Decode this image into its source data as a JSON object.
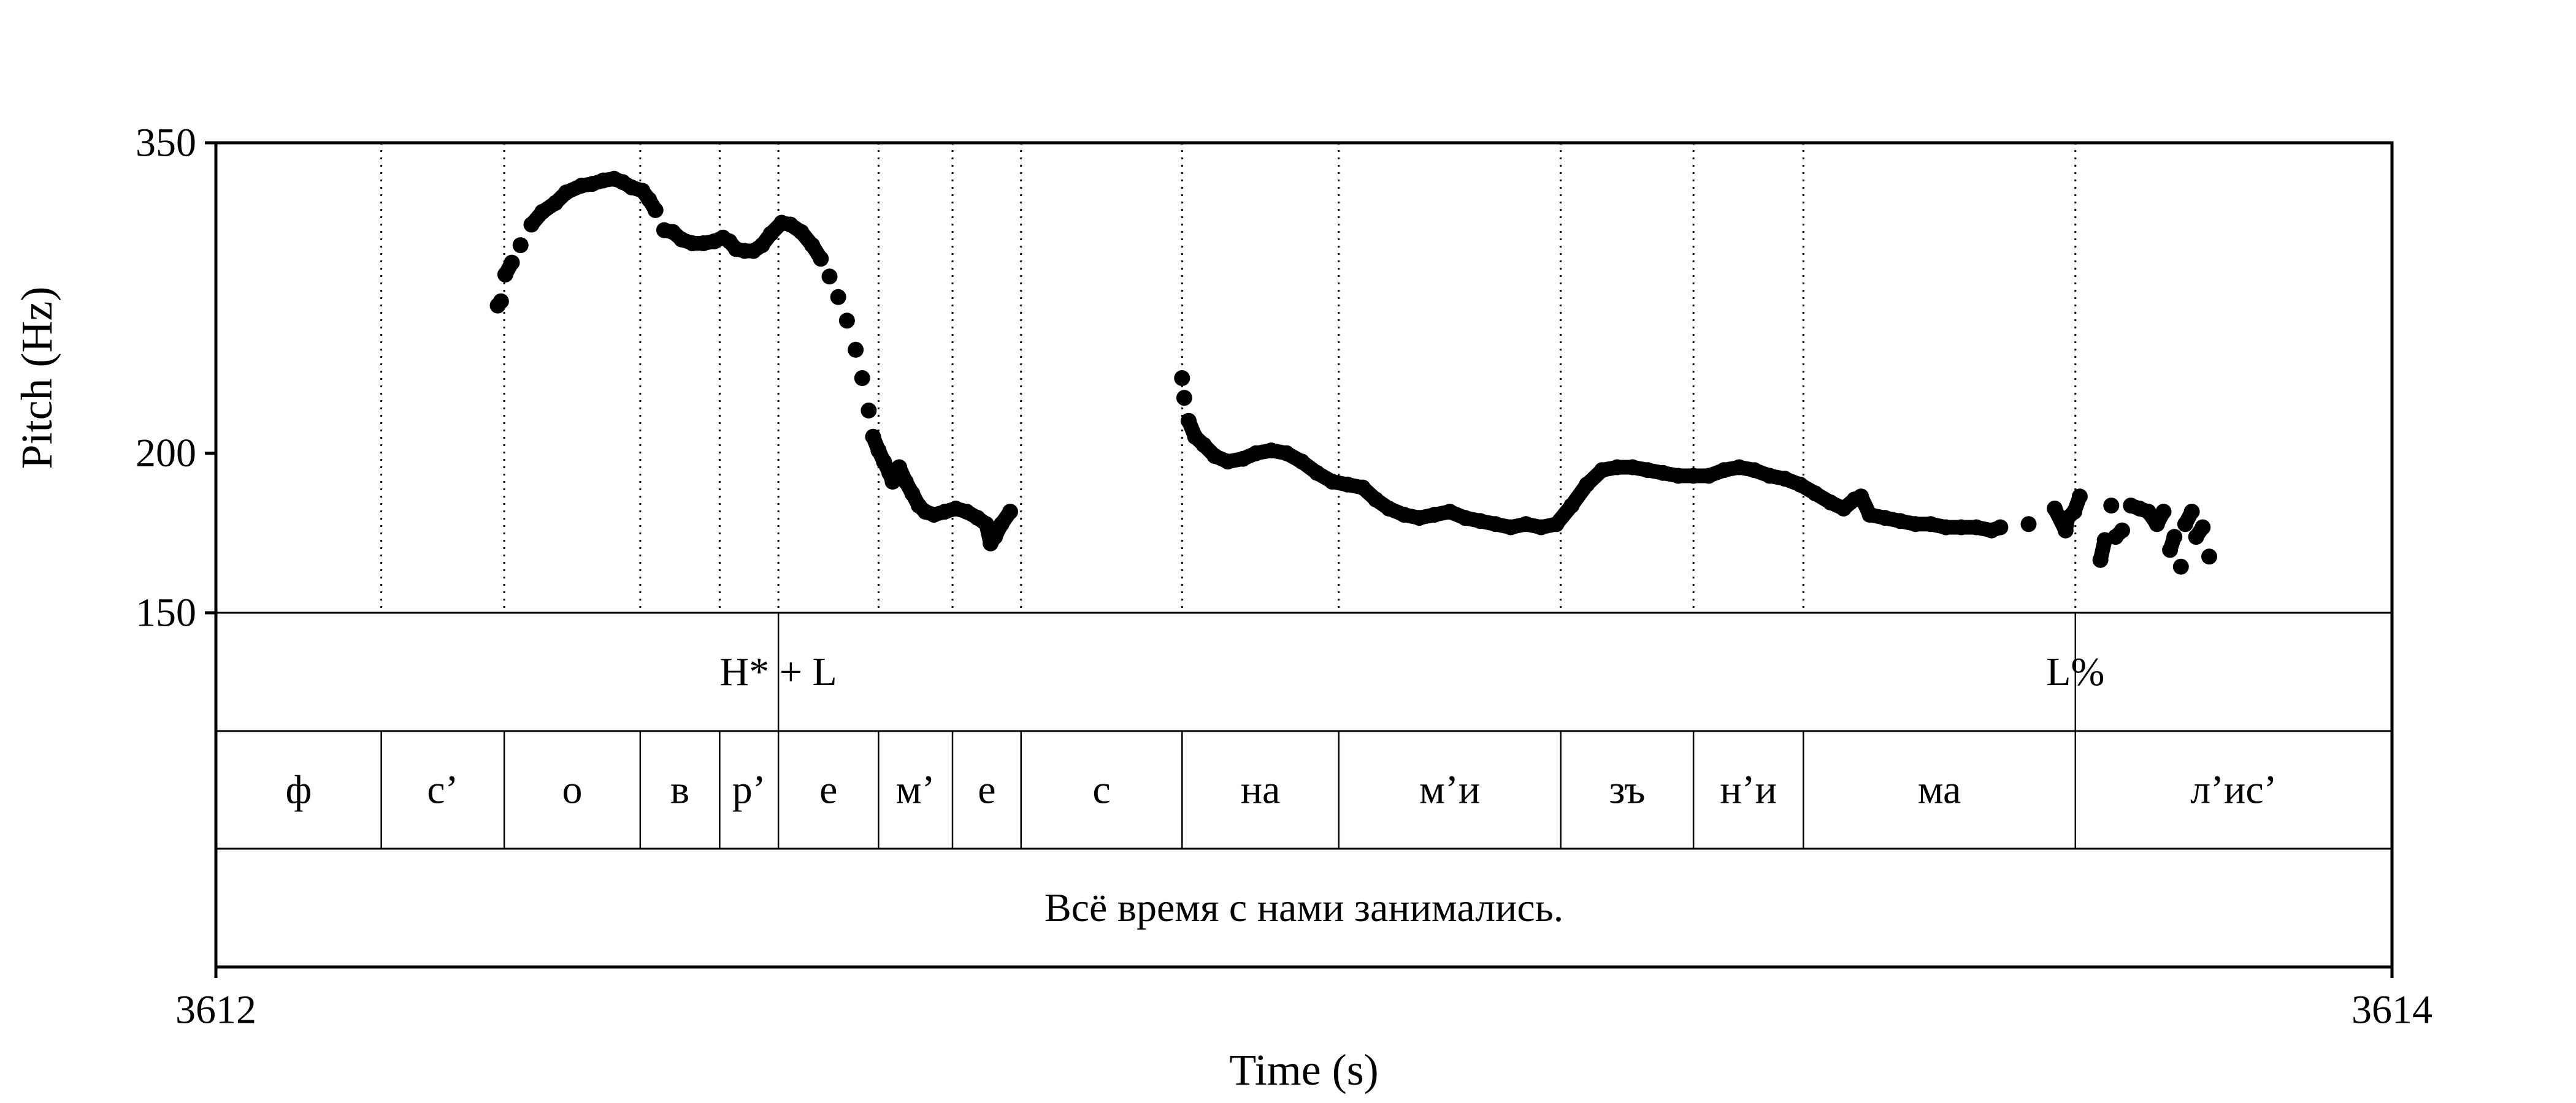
{
  "chart_data": {
    "type": "scatter",
    "title": "",
    "xlabel": "Time (s)",
    "ylabel": "Pitch (Hz)",
    "xlim": [
      3612,
      3614
    ],
    "ylim": [
      150,
      350
    ],
    "y_scale": "log",
    "x_tick_labels": [
      "3612",
      "3614"
    ],
    "y_tick_labels": [
      "150",
      "200",
      "350"
    ],
    "grid": false,
    "pitch_points": [
      [
        3612.259,
        261
      ],
      [
        3612.262,
        263
      ],
      [
        3612.266,
        276
      ],
      [
        3612.272,
        282
      ],
      [
        3612.28,
        291
      ],
      [
        3612.29,
        302
      ],
      [
        3612.3,
        309
      ],
      [
        3612.312,
        314
      ],
      [
        3612.322,
        320
      ],
      [
        3612.336,
        324
      ],
      [
        3612.346,
        325
      ],
      [
        3612.356,
        327
      ],
      [
        3612.366,
        328
      ],
      [
        3612.374,
        326
      ],
      [
        3612.382,
        323
      ],
      [
        3612.392,
        321
      ],
      [
        3612.398,
        316
      ],
      [
        3612.404,
        310
      ],
      [
        3612.412,
        299
      ],
      [
        3612.42,
        298
      ],
      [
        3612.428,
        294
      ],
      [
        3612.438,
        292
      ],
      [
        3612.448,
        292
      ],
      [
        3612.458,
        293
      ],
      [
        3612.466,
        295
      ],
      [
        3612.472,
        293
      ],
      [
        3612.478,
        289
      ],
      [
        3612.486,
        288
      ],
      [
        3612.494,
        288
      ],
      [
        3612.502,
        291
      ],
      [
        3612.51,
        297
      ],
      [
        3612.52,
        303
      ],
      [
        3612.528,
        302
      ],
      [
        3612.538,
        298
      ],
      [
        3612.548,
        291
      ],
      [
        3612.556,
        284
      ],
      [
        3612.564,
        275
      ],
      [
        3612.572,
        265
      ],
      [
        3612.58,
        254
      ],
      [
        3612.588,
        241
      ],
      [
        3612.594,
        229
      ],
      [
        3612.6,
        216
      ],
      [
        3612.604,
        206
      ],
      [
        3612.609,
        201
      ],
      [
        3612.614,
        197
      ],
      [
        3612.619,
        193
      ],
      [
        3612.622,
        190
      ],
      [
        3612.628,
        195
      ],
      [
        3612.634,
        190
      ],
      [
        3612.64,
        186
      ],
      [
        3612.646,
        182
      ],
      [
        3612.652,
        180
      ],
      [
        3612.66,
        179
      ],
      [
        3612.67,
        180
      ],
      [
        3612.68,
        181
      ],
      [
        3612.69,
        180
      ],
      [
        3612.7,
        178
      ],
      [
        3612.708,
        176
      ],
      [
        3612.712,
        170
      ],
      [
        3612.716,
        172
      ],
      [
        3612.722,
        176
      ],
      [
        3612.73,
        180
      ],
      [
        3612.888,
        229
      ],
      [
        3612.89,
        221
      ],
      [
        3612.894,
        212
      ],
      [
        3612.9,
        206
      ],
      [
        3612.908,
        203
      ],
      [
        3612.918,
        199
      ],
      [
        3612.93,
        197
      ],
      [
        3612.944,
        198
      ],
      [
        3612.956,
        200
      ],
      [
        3612.97,
        201
      ],
      [
        3612.984,
        200
      ],
      [
        3612.998,
        197
      ],
      [
        3613.012,
        193
      ],
      [
        3613.026,
        190
      ],
      [
        3613.04,
        189
      ],
      [
        3613.054,
        188
      ],
      [
        3613.066,
        184
      ],
      [
        3613.078,
        181
      ],
      [
        3613.092,
        179
      ],
      [
        3613.106,
        178
      ],
      [
        3613.12,
        179
      ],
      [
        3613.134,
        180
      ],
      [
        3613.148,
        178
      ],
      [
        3613.162,
        177
      ],
      [
        3613.176,
        176
      ],
      [
        3613.19,
        175
      ],
      [
        3613.204,
        176
      ],
      [
        3613.218,
        175
      ],
      [
        3613.232,
        176
      ],
      [
        3613.246,
        182
      ],
      [
        3613.26,
        189
      ],
      [
        3613.274,
        194
      ],
      [
        3613.288,
        195
      ],
      [
        3613.302,
        195
      ],
      [
        3613.316,
        194
      ],
      [
        3613.33,
        193
      ],
      [
        3613.344,
        192
      ],
      [
        3613.358,
        192
      ],
      [
        3613.372,
        192
      ],
      [
        3613.386,
        194
      ],
      [
        3613.4,
        195
      ],
      [
        3613.414,
        194
      ],
      [
        3613.428,
        192
      ],
      [
        3613.442,
        191
      ],
      [
        3613.456,
        189
      ],
      [
        3613.47,
        186
      ],
      [
        3613.484,
        183
      ],
      [
        3613.496,
        181
      ],
      [
        3613.506,
        184
      ],
      [
        3613.512,
        185
      ],
      [
        3613.52,
        179
      ],
      [
        3613.534,
        178
      ],
      [
        3613.548,
        177
      ],
      [
        3613.562,
        176
      ],
      [
        3613.576,
        176
      ],
      [
        3613.59,
        175
      ],
      [
        3613.604,
        175
      ],
      [
        3613.618,
        175
      ],
      [
        3613.632,
        174
      ],
      [
        3613.64,
        175
      ],
      [
        3613.666,
        176
      ],
      [
        3613.69,
        181
      ],
      [
        3613.7,
        174
      ],
      [
        3613.702,
        178
      ],
      [
        3613.708,
        180
      ],
      [
        3613.713,
        185
      ],
      [
        3613.732,
        165
      ],
      [
        3613.736,
        171
      ],
      [
        3613.742,
        182
      ],
      [
        3613.746,
        172
      ],
      [
        3613.752,
        174
      ],
      [
        3613.76,
        182
      ],
      [
        3613.768,
        181
      ],
      [
        3613.776,
        180
      ],
      [
        3613.784,
        176
      ],
      [
        3613.79,
        180
      ],
      [
        3613.796,
        168
      ],
      [
        3613.8,
        172
      ],
      [
        3613.806,
        163
      ],
      [
        3613.81,
        176
      ],
      [
        3613.816,
        180
      ],
      [
        3613.82,
        172
      ],
      [
        3613.826,
        175
      ],
      [
        3613.832,
        166
      ]
    ]
  },
  "tiers": {
    "tones": {
      "labels": [
        {
          "t": 3612.517,
          "text": "H* + L"
        },
        {
          "t": 3613.709,
          "text": "L%"
        }
      ]
    },
    "segments": {
      "boundaries": [
        3612.152,
        3612.265,
        3612.39,
        3612.463,
        3612.517,
        3612.609,
        3612.677,
        3612.74,
        3612.888,
        3613.032,
        3613.236,
        3613.358,
        3613.459,
        3613.709
      ],
      "labels": [
        "ф",
        "с’",
        "о",
        "в",
        "р’",
        "е",
        "м’",
        "е",
        "с",
        "на",
        "м’и",
        "зъ",
        "н’и",
        "ма",
        "л’ис’"
      ]
    },
    "sentence": {
      "text": "Всё время с нами занимались."
    }
  }
}
